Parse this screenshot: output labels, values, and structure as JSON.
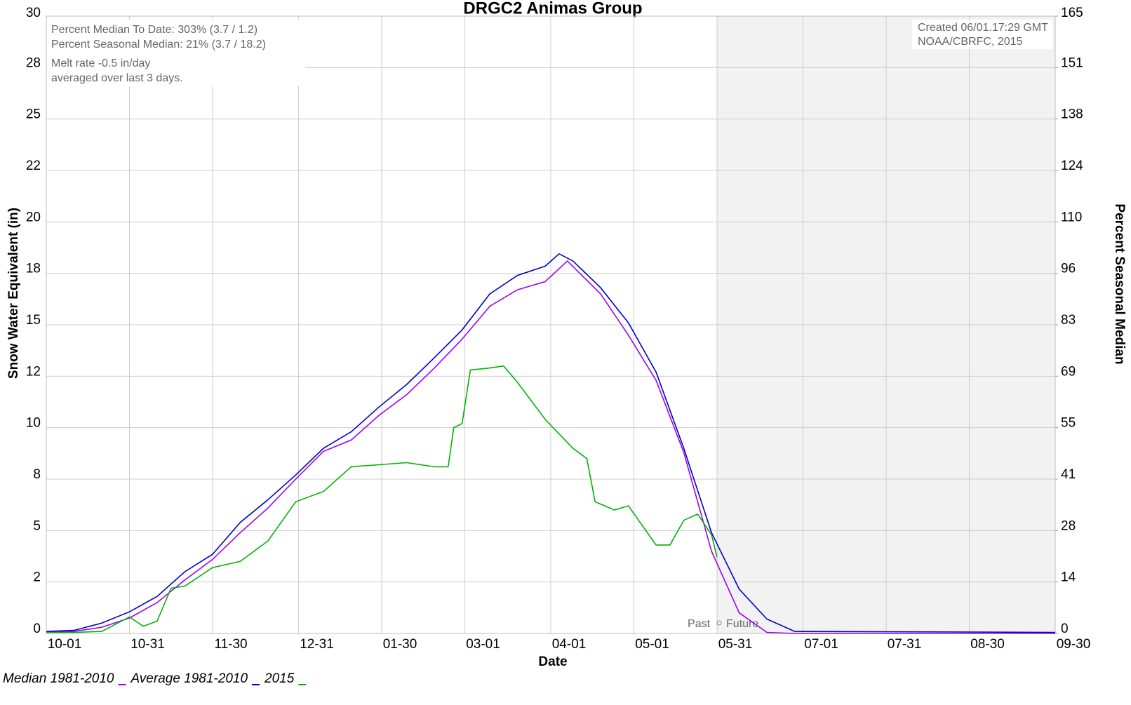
{
  "chart_data": {
    "type": "line",
    "title": "DRGC2 Animas  Group",
    "xlabel": "Date",
    "ylabel": "Snow Water Equivalent (in)",
    "y2label": "Percent Seasonal Median",
    "annotations": [
      "Percent Median To Date: 303% (3.7 / 1.2)",
      "Percent Seasonal Median: 21% (3.7 / 18.2)",
      "Melt rate -0.5 in/day",
      "averaged over last 3 days."
    ],
    "credits": [
      "Created 06/01.17:29 GMT",
      "NOAA/CBRFC, 2015"
    ],
    "past_label": "Past",
    "future_label": "Future",
    "divider_x": 242,
    "xlim": [
      0,
      364
    ],
    "xticks": [
      {
        "value": 0,
        "label": "10-01"
      },
      {
        "value": 30,
        "label": "10-31"
      },
      {
        "value": 60,
        "label": "11-30"
      },
      {
        "value": 91,
        "label": "12-31"
      },
      {
        "value": 121,
        "label": "01-30"
      },
      {
        "value": 151,
        "label": "03-01"
      },
      {
        "value": 182,
        "label": "04-01"
      },
      {
        "value": 212,
        "label": "05-01"
      },
      {
        "value": 242,
        "label": "05-31"
      },
      {
        "value": 273,
        "label": "07-01"
      },
      {
        "value": 303,
        "label": "07-31"
      },
      {
        "value": 333,
        "label": "08-30"
      },
      {
        "value": 364,
        "label": "09-30"
      }
    ],
    "ylim": [
      0,
      30
    ],
    "yticks": [
      0,
      {
        "value": 2.5,
        "label": "2"
      },
      5,
      {
        "value": 7.5,
        "label": "8"
      },
      10,
      {
        "value": 12.5,
        "label": "12"
      },
      15,
      {
        "value": 17.5,
        "label": "18"
      },
      20,
      {
        "value": 22.5,
        "label": "22"
      },
      25,
      {
        "value": 27.5,
        "label": "28"
      },
      30
    ],
    "y2lim": [
      0,
      165
    ],
    "y2ticks": [
      0,
      {
        "value": 13.75,
        "label": "14"
      },
      {
        "value": 27.5,
        "label": "28"
      },
      {
        "value": 41.25,
        "label": "41"
      },
      55,
      {
        "value": 68.75,
        "label": "69"
      },
      {
        "value": 82.5,
        "label": "83"
      },
      {
        "value": 96.25,
        "label": "96"
      },
      110,
      {
        "value": 123.75,
        "label": "124"
      },
      {
        "value": 137.5,
        "label": "138"
      },
      {
        "value": 151.25,
        "label": "151"
      },
      165
    ],
    "grid": true,
    "series": [
      {
        "name": "Median 1981-2010",
        "color": "#a000f0",
        "x": [
          0,
          10,
          20,
          30,
          40,
          50,
          60,
          70,
          80,
          90,
          100,
          110,
          120,
          130,
          140,
          150,
          160,
          170,
          180,
          188,
          200,
          210,
          220,
          230,
          240,
          250,
          260,
          270,
          364
        ],
        "values": [
          0.05,
          0.1,
          0.3,
          0.75,
          1.5,
          2.6,
          3.6,
          4.9,
          6.1,
          7.5,
          8.85,
          9.4,
          10.6,
          11.6,
          12.9,
          14.3,
          15.9,
          16.7,
          17.1,
          18.1,
          16.5,
          14.5,
          12.3,
          8.8,
          4.0,
          1.0,
          0.05,
          0,
          0
        ]
      },
      {
        "name": "Average 1981-2010",
        "color": "#0000c8",
        "x": [
          0,
          10,
          20,
          30,
          40,
          50,
          60,
          70,
          80,
          90,
          100,
          110,
          120,
          130,
          140,
          150,
          160,
          170,
          180,
          185,
          190,
          200,
          210,
          220,
          230,
          240,
          250,
          260,
          270,
          364
        ],
        "values": [
          0.1,
          0.15,
          0.5,
          1.05,
          1.8,
          3.0,
          3.85,
          5.4,
          6.5,
          7.7,
          9.0,
          9.8,
          11.0,
          12.1,
          13.4,
          14.75,
          16.5,
          17.4,
          17.85,
          18.45,
          18.1,
          16.8,
          15.1,
          12.7,
          9.0,
          4.9,
          2.15,
          0.7,
          0.1,
          0.05
        ]
      },
      {
        "name": "2015",
        "color": "#00b400",
        "x": [
          0,
          10,
          20,
          30,
          35,
          40,
          45,
          50,
          60,
          70,
          80,
          90,
          100,
          110,
          120,
          130,
          140,
          145,
          147,
          150,
          153,
          160,
          165,
          170,
          180,
          190,
          195,
          198,
          205,
          210,
          220,
          225,
          230,
          235,
          240,
          242
        ],
        "values": [
          0.05,
          0.05,
          0.1,
          0.8,
          0.35,
          0.6,
          2.2,
          2.3,
          3.2,
          3.5,
          4.5,
          6.4,
          6.9,
          8.1,
          8.2,
          8.3,
          8.1,
          8.1,
          10.0,
          10.2,
          12.8,
          12.9,
          13.0,
          12.2,
          10.4,
          9.0,
          8.5,
          6.4,
          6.0,
          6.2,
          4.3,
          4.3,
          5.5,
          5.8,
          4.8,
          3.7
        ]
      }
    ]
  }
}
